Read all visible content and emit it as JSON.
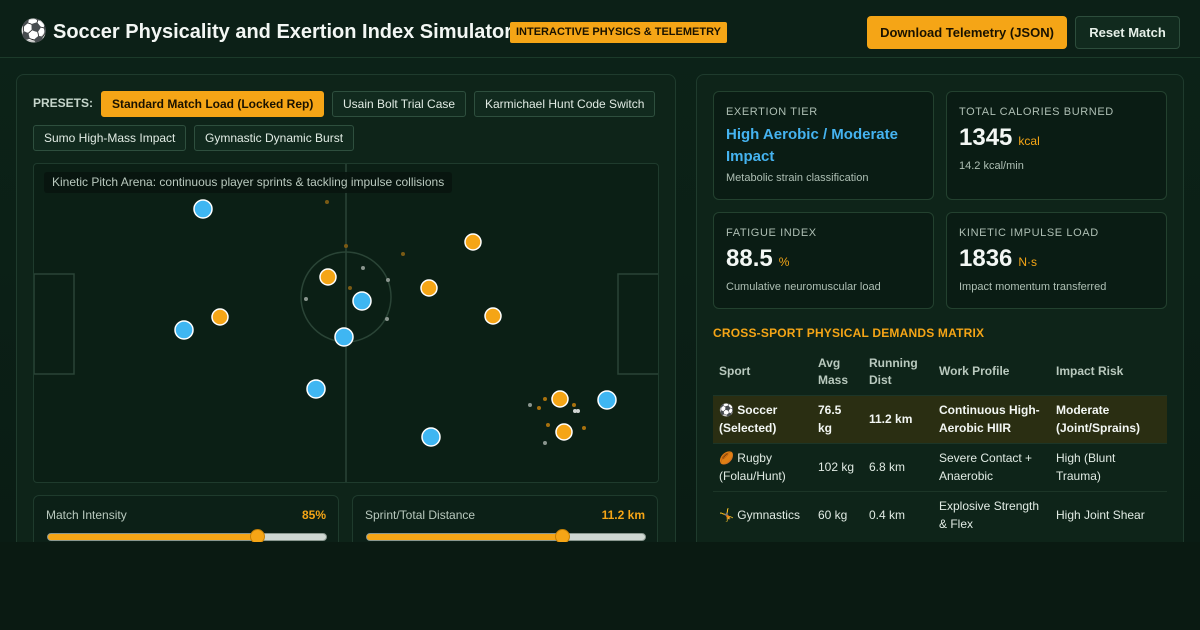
{
  "header": {
    "logo_icon": "⚽",
    "title": "Soccer Physicality and Exertion Index Simulator",
    "badge": "INTERACTIVE PHYSICS & TELEMETRY",
    "download_label": "Download Telemetry (JSON)",
    "reset_label": "Reset Match"
  },
  "presets": {
    "label": "PRESETS:",
    "items": [
      {
        "label": "Standard Match Load (Locked Rep)",
        "active": true
      },
      {
        "label": "Usain Bolt Trial Case",
        "active": false
      },
      {
        "label": "Karmichael Hunt Code Switch",
        "active": false
      },
      {
        "label": "Sumo High-Mass Impact",
        "active": false
      },
      {
        "label": "Gymnastic Dynamic Burst",
        "active": false
      }
    ]
  },
  "pitch": {
    "caption": "Kinetic Pitch Arena: continuous player sprints & tackling impulse collisions",
    "colors": {
      "team_a": "#3fb6f2",
      "team_b": "#f5a516",
      "lines": "#2a4436"
    }
  },
  "sliders": [
    {
      "label": "Match Intensity",
      "value": "85%",
      "fraction": 0.75
    },
    {
      "label": "Sprint/Total Distance",
      "value": "11.2 km",
      "fraction": 0.7
    }
  ],
  "stats": {
    "tier": {
      "label": "EXERTION TIER",
      "value": "High Aerobic / Moderate Impact",
      "sub": "Metabolic strain classification"
    },
    "calories": {
      "label": "TOTAL CALORIES BURNED",
      "value": "1345",
      "unit": "kcal",
      "sub": "14.2 kcal/min"
    },
    "fatigue": {
      "label": "FATIGUE INDEX",
      "value": "88.5",
      "unit": "%",
      "sub": "Cumulative neuromuscular load"
    },
    "impulse": {
      "label": "KINETIC IMPULSE LOAD",
      "value": "1836",
      "unit": "N·s",
      "sub": "Impact momentum transferred"
    }
  },
  "matrix": {
    "title": "CROSS-SPORT PHYSICAL DEMANDS MATRIX",
    "headers": [
      "Sport",
      "Avg Mass",
      "Running Dist",
      "Work Profile",
      "Impact Risk"
    ],
    "rows": [
      {
        "icon": "⚽",
        "sport": "Soccer (Selected)",
        "mass": "76.5 kg",
        "dist": "11.2 km",
        "profile": "Continuous High-Aerobic HIIR",
        "risk": "Moderate (Joint/Sprains)",
        "selected": true
      },
      {
        "icon": "🏉",
        "sport": "Rugby (Folau/Hunt)",
        "mass": "102 kg",
        "dist": "6.8 km",
        "profile": "Severe Contact + Anaerobic",
        "risk": "High (Blunt Trauma)",
        "selected": false
      },
      {
        "icon": "🤸",
        "sport": "Gymnastics",
        "mass": "60 kg",
        "dist": "0.4 km",
        "profile": "Explosive Strength & Flex",
        "risk": "High Joint Shear",
        "selected": false
      }
    ]
  }
}
